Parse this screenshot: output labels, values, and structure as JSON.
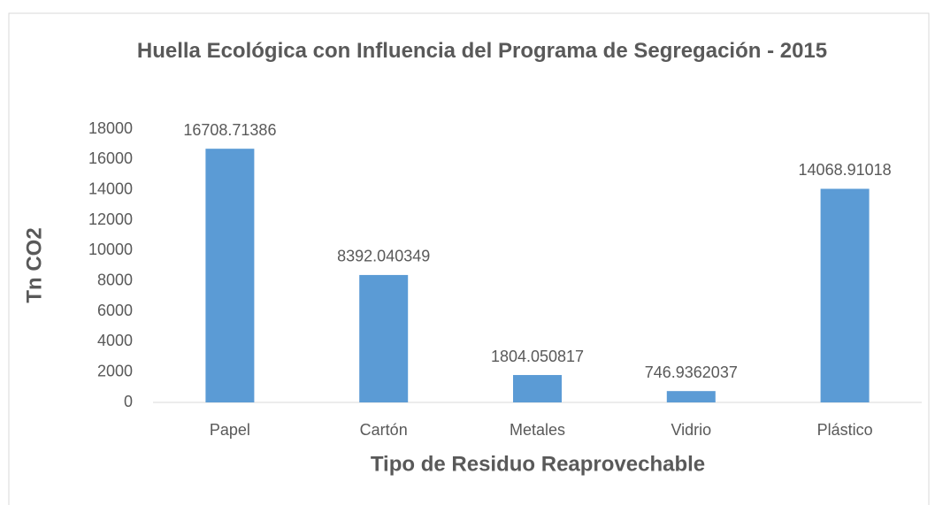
{
  "chart_data": {
    "type": "bar",
    "title": "Huella Ecológica con Influencia del Programa de Segregación - 2015",
    "x_label": "Tipo de Residuo Reaprovechable",
    "y_label": "Tn CO2",
    "categories": [
      "Papel",
      "Cartón",
      "Metales",
      "Vidrio",
      "Plástico"
    ],
    "values": [
      16708.71386,
      8392.040349,
      1804.050817,
      746.9362037,
      14068.91018
    ],
    "color": "#5b9bd5",
    "ylim": [
      0,
      18000
    ],
    "yticks": [
      0,
      2000,
      4000,
      6000,
      8000,
      10000,
      12000,
      14000,
      16000,
      18000
    ],
    "grid": false
  }
}
